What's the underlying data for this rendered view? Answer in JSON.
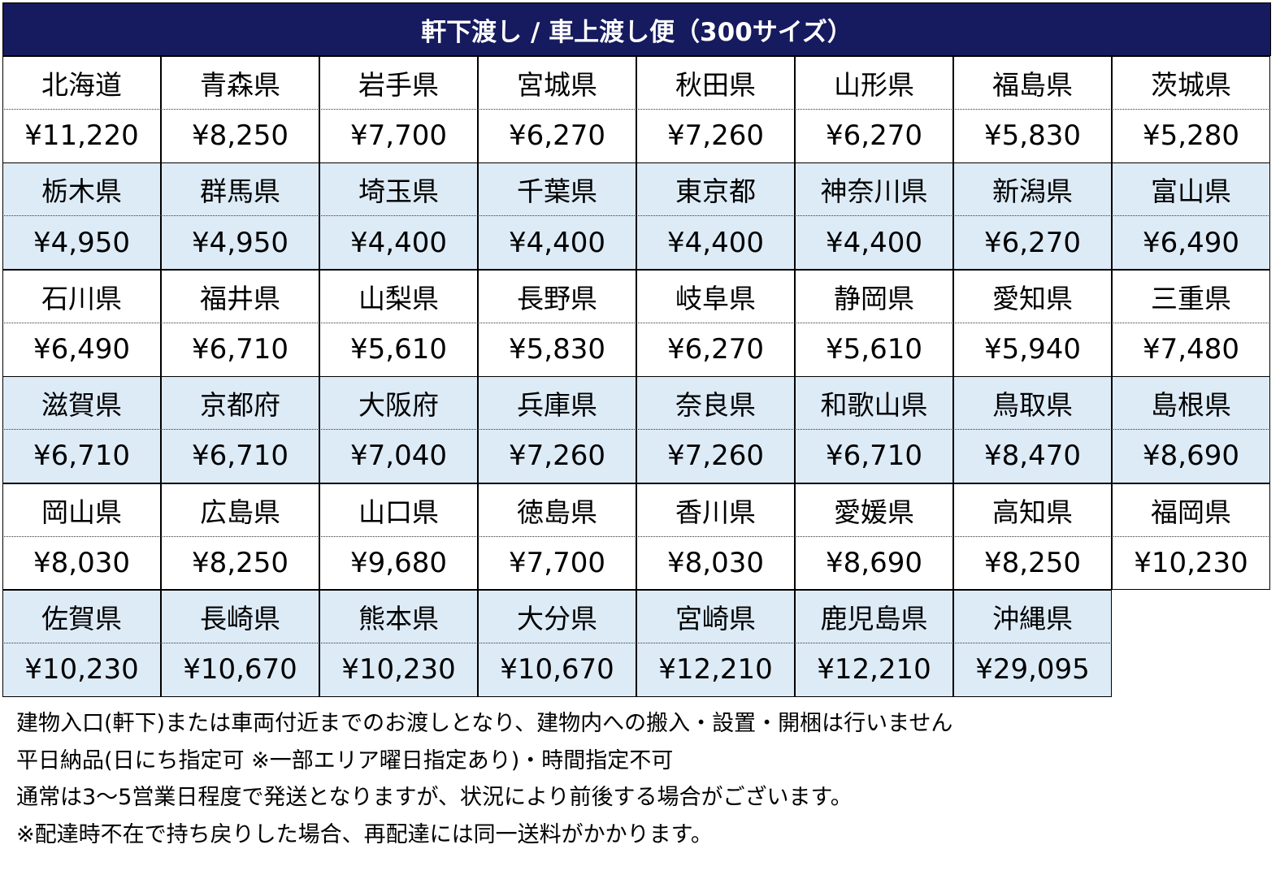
{
  "title": "軒下渡し / 車上渡し便（300サイズ）",
  "colors": {
    "header_bg": "#161a5e",
    "alt_row_bg": "#ddebf7"
  },
  "prefectures": [
    {
      "name": "北海道",
      "price": "¥11,220"
    },
    {
      "name": "青森県",
      "price": "¥8,250"
    },
    {
      "name": "岩手県",
      "price": "¥7,700"
    },
    {
      "name": "宮城県",
      "price": "¥6,270"
    },
    {
      "name": "秋田県",
      "price": "¥7,260"
    },
    {
      "name": "山形県",
      "price": "¥6,270"
    },
    {
      "name": "福島県",
      "price": "¥5,830"
    },
    {
      "name": "茨城県",
      "price": "¥5,280"
    },
    {
      "name": "栃木県",
      "price": "¥4,950"
    },
    {
      "name": "群馬県",
      "price": "¥4,950"
    },
    {
      "name": "埼玉県",
      "price": "¥4,400"
    },
    {
      "name": "千葉県",
      "price": "¥4,400"
    },
    {
      "name": "東京都",
      "price": "¥4,400"
    },
    {
      "name": "神奈川県",
      "price": "¥4,400"
    },
    {
      "name": "新潟県",
      "price": "¥6,270"
    },
    {
      "name": "富山県",
      "price": "¥6,490"
    },
    {
      "name": "石川県",
      "price": "¥6,490"
    },
    {
      "name": "福井県",
      "price": "¥6,710"
    },
    {
      "name": "山梨県",
      "price": "¥5,610"
    },
    {
      "name": "長野県",
      "price": "¥5,830"
    },
    {
      "name": "岐阜県",
      "price": "¥6,270"
    },
    {
      "name": "静岡県",
      "price": "¥5,610"
    },
    {
      "name": "愛知県",
      "price": "¥5,940"
    },
    {
      "name": "三重県",
      "price": "¥7,480"
    },
    {
      "name": "滋賀県",
      "price": "¥6,710"
    },
    {
      "name": "京都府",
      "price": "¥6,710"
    },
    {
      "name": "大阪府",
      "price": "¥7,040"
    },
    {
      "name": "兵庫県",
      "price": "¥7,260"
    },
    {
      "name": "奈良県",
      "price": "¥7,260"
    },
    {
      "name": "和歌山県",
      "price": "¥6,710"
    },
    {
      "name": "鳥取県",
      "price": "¥8,470"
    },
    {
      "name": "島根県",
      "price": "¥8,690"
    },
    {
      "name": "岡山県",
      "price": "¥8,030"
    },
    {
      "name": "広島県",
      "price": "¥8,250"
    },
    {
      "name": "山口県",
      "price": "¥9,680"
    },
    {
      "name": "徳島県",
      "price": "¥7,700"
    },
    {
      "name": "香川県",
      "price": "¥8,030"
    },
    {
      "name": "愛媛県",
      "price": "¥8,690"
    },
    {
      "name": "高知県",
      "price": "¥8,250"
    },
    {
      "name": "福岡県",
      "price": "¥10,230"
    },
    {
      "name": "佐賀県",
      "price": "¥10,230"
    },
    {
      "name": "長崎県",
      "price": "¥10,670"
    },
    {
      "name": "熊本県",
      "price": "¥10,230"
    },
    {
      "name": "大分県",
      "price": "¥10,670"
    },
    {
      "name": "宮崎県",
      "price": "¥12,210"
    },
    {
      "name": "鹿児島県",
      "price": "¥12,210"
    },
    {
      "name": "沖縄県",
      "price": "¥29,095"
    }
  ],
  "notes": [
    "建物入口(軒下)または車両付近までのお渡しとなり、建物内への搬入・設置・開梱は行いません",
    "平日納品(日にち指定可 ※一部エリア曜日指定あり)・時間指定不可",
    "通常は3～5営業日程度で発送となりますが、状況により前後する場合がございます。",
    "※配達時不在で持ち戻りした場合、再配達には同一送料がかかります。"
  ]
}
